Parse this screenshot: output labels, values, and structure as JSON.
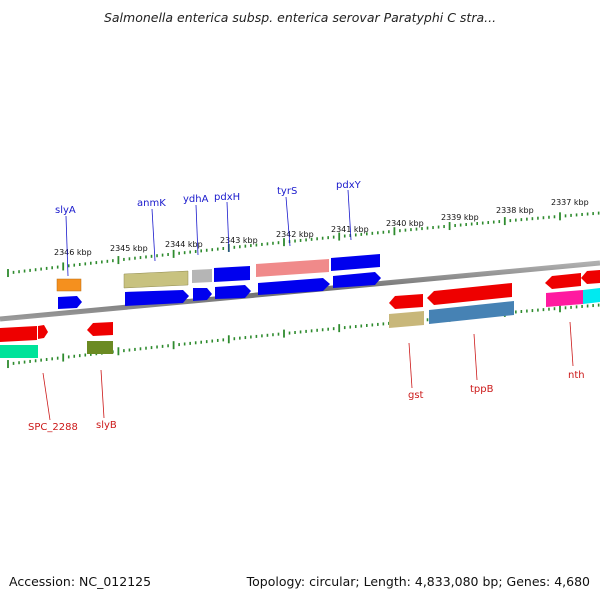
{
  "title": "Salmonella enterica subsp. enterica serovar Paratyphi C stra...",
  "footer": {
    "accession": "Accession: NC_012125",
    "summary": "Topology: circular; Length: 4,833,080 bp; Genes: 4,680"
  },
  "kbp_labels": [
    "2346 kbp",
    "2345 kbp",
    "2344 kbp",
    "2343 kbp",
    "2342 kbp",
    "2341 kbp",
    "2340 kbp",
    "2339 kbp",
    "2338 kbp",
    "2337 kbp"
  ],
  "genes_top": [
    "slyA",
    "anmK",
    "ydhA",
    "pdxH",
    "tyrS",
    "pdxY"
  ],
  "genes_bottom": [
    "SPC_2288",
    "slyB",
    "gst",
    "tppB",
    "nth"
  ],
  "colors": {
    "backbone": "#808080",
    "tick": "#2e8b2e",
    "label_top": "#1a1acc",
    "label_bottom": "#cc1a1a",
    "cds_forward": "#0000ee",
    "cds_reverse": "#ee0000"
  }
}
